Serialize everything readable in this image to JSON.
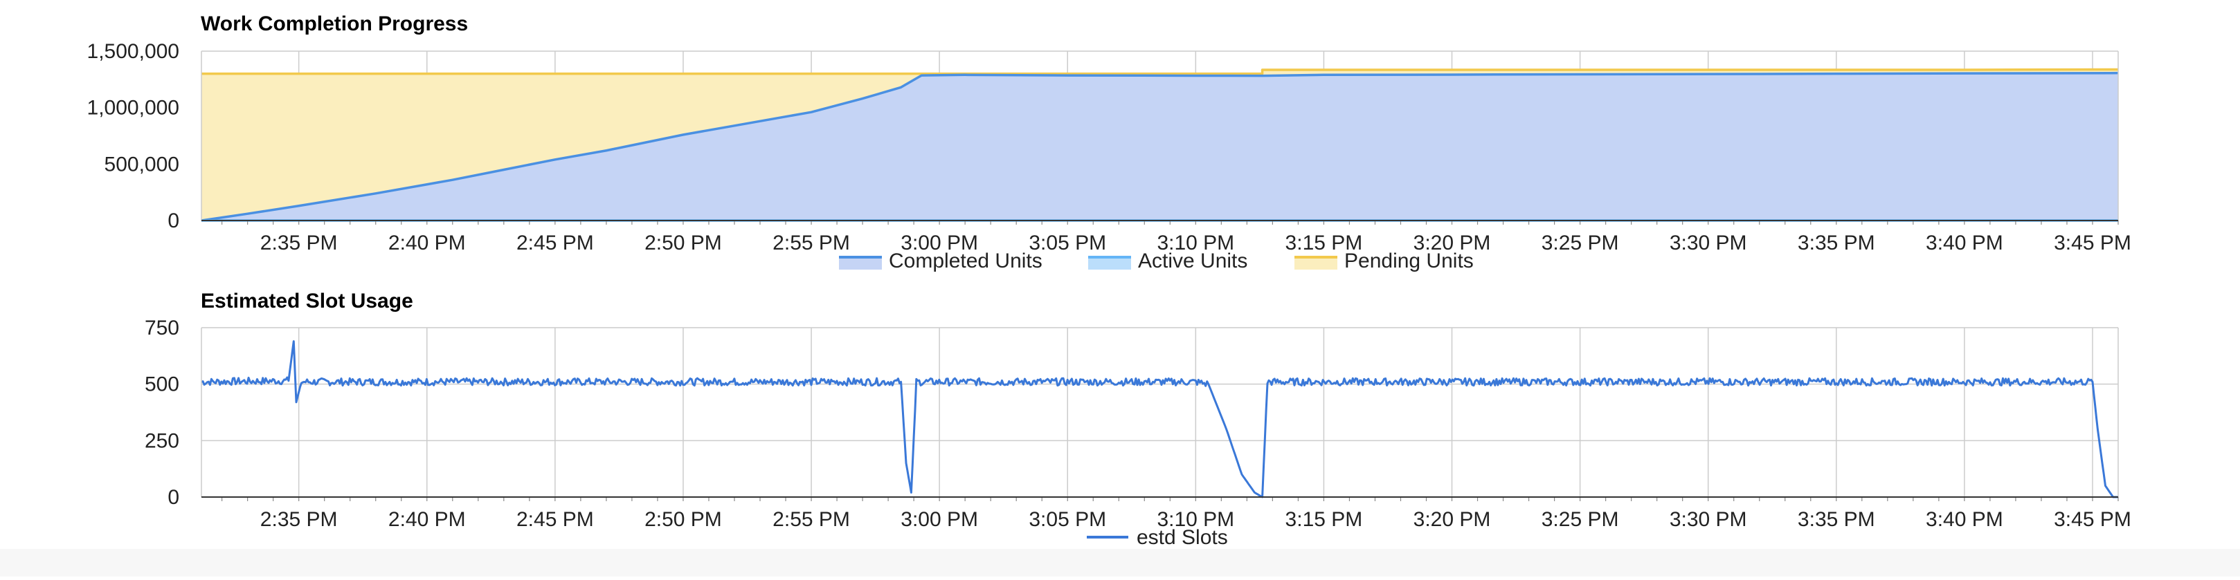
{
  "colors": {
    "completed_line": "#4a90e2",
    "completed_fill": "#c5d4f5",
    "active_line": "#64b5f6",
    "active_fill": "#bbdefb",
    "pending_line": "#f2c94c",
    "pending_fill": "#fbeebe",
    "slots_line": "#3a78d8",
    "grid": "#cccccc",
    "axis": "#333333"
  },
  "chart_data": [
    {
      "type": "area",
      "title": "Work Completion Progress",
      "x_tick_labels": [
        "2:35 PM",
        "2:40 PM",
        "2:45 PM",
        "2:50 PM",
        "2:55 PM",
        "3:00 PM",
        "3:05 PM",
        "3:10 PM",
        "3:15 PM",
        "3:20 PM",
        "3:25 PM",
        "3:30 PM",
        "3:35 PM",
        "3:40 PM",
        "3:45 PM"
      ],
      "x_tick_minutes_after_2pm": [
        35,
        40,
        45,
        50,
        55,
        60,
        65,
        70,
        75,
        80,
        85,
        90,
        95,
        100,
        105
      ],
      "xlim_minutes_after_2pm": [
        31.2,
        106.0
      ],
      "y_tick_labels": [
        "0",
        "500,000",
        "1,000,000",
        "1,500,000"
      ],
      "y_ticks": [
        0,
        500000,
        1000000,
        1500000
      ],
      "ylim": [
        0,
        1500000
      ],
      "grid": true,
      "legend_position": "bottom",
      "series": [
        {
          "name": "Completed Units",
          "points": [
            [
              31.2,
              0
            ],
            [
              33,
              60000
            ],
            [
              35,
              130000
            ],
            [
              38,
              240000
            ],
            [
              40,
              320000
            ],
            [
              41,
              360000
            ],
            [
              43,
              450000
            ],
            [
              45,
              540000
            ],
            [
              47,
              620000
            ],
            [
              50,
              760000
            ],
            [
              52,
              840000
            ],
            [
              55,
              960000
            ],
            [
              57,
              1080000
            ],
            [
              58.5,
              1180000
            ],
            [
              59.3,
              1285000
            ],
            [
              61,
              1290000
            ],
            [
              65,
              1285000
            ],
            [
              70,
              1283000
            ],
            [
              72.6,
              1282000
            ],
            [
              75,
              1290000
            ],
            [
              80,
              1292000
            ],
            [
              85,
              1295000
            ],
            [
              90,
              1297000
            ],
            [
              95,
              1300000
            ],
            [
              100,
              1303000
            ],
            [
              106,
              1306000
            ]
          ]
        },
        {
          "name": "Active Units",
          "points": [
            [
              31.2,
              0
            ],
            [
              106,
              0
            ]
          ]
        },
        {
          "name": "Pending Units",
          "points": [
            [
              31.2,
              1300000
            ],
            [
              72.6,
              1300000
            ],
            [
              72.6,
              1335000
            ],
            [
              80,
              1335000
            ],
            [
              90,
              1335000
            ],
            [
              100,
              1335000
            ],
            [
              106,
              1338000
            ]
          ]
        }
      ]
    },
    {
      "type": "line",
      "title": "Estimated Slot Usage",
      "x_tick_labels": [
        "2:35 PM",
        "2:40 PM",
        "2:45 PM",
        "2:50 PM",
        "2:55 PM",
        "3:00 PM",
        "3:05 PM",
        "3:10 PM",
        "3:15 PM",
        "3:20 PM",
        "3:25 PM",
        "3:30 PM",
        "3:35 PM",
        "3:40 PM",
        "3:45 PM"
      ],
      "x_tick_minutes_after_2pm": [
        35,
        40,
        45,
        50,
        55,
        60,
        65,
        70,
        75,
        80,
        85,
        90,
        95,
        100,
        105
      ],
      "xlim_minutes_after_2pm": [
        31.2,
        106.0
      ],
      "y_tick_labels": [
        "0",
        "250",
        "500",
        "750"
      ],
      "y_ticks": [
        0,
        250,
        500,
        750
      ],
      "ylim": [
        0,
        750
      ],
      "grid": true,
      "legend_position": "bottom",
      "series": [
        {
          "name": "estd Slots",
          "points": [
            [
              31.2,
              510
            ],
            [
              34.6,
              515
            ],
            [
              34.8,
              690
            ],
            [
              34.9,
              420
            ],
            [
              35.1,
              510
            ],
            [
              58.5,
              510
            ],
            [
              58.7,
              150
            ],
            [
              58.9,
              20
            ],
            [
              59.1,
              510
            ],
            [
              65,
              510
            ],
            [
              70,
              510
            ],
            [
              70.5,
              500
            ],
            [
              71.2,
              300
            ],
            [
              71.8,
              100
            ],
            [
              72.3,
              20
            ],
            [
              72.6,
              0
            ],
            [
              72.8,
              510
            ],
            [
              105,
              510
            ],
            [
              105.2,
              300
            ],
            [
              105.5,
              50
            ],
            [
              105.8,
              0
            ],
            [
              106,
              0
            ]
          ]
        }
      ]
    }
  ]
}
